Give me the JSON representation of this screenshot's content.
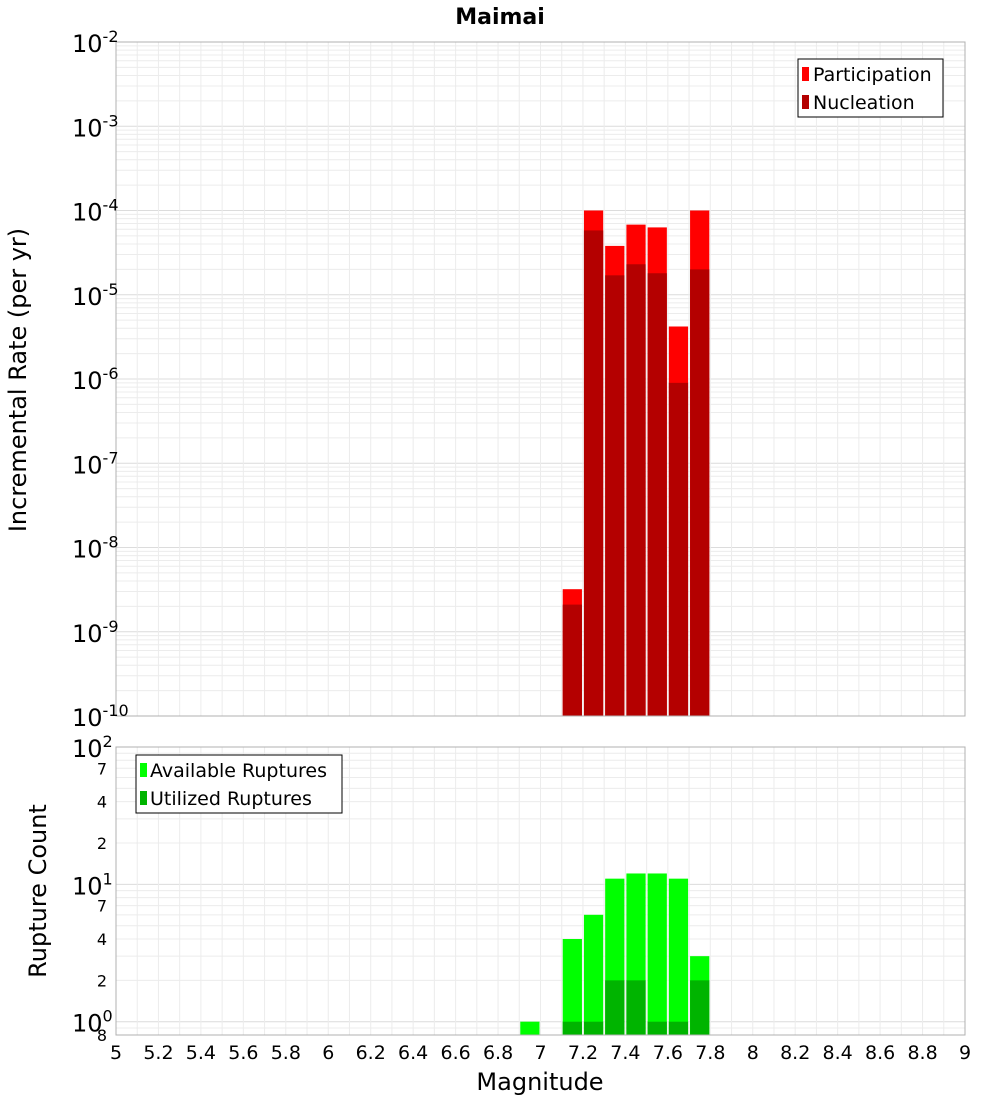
{
  "chart_data": [
    {
      "type": "bar",
      "title": "Maimai",
      "ylabel": "Incremental Rate (per yr)",
      "xlabel": "",
      "x_range": [
        5,
        9
      ],
      "y_scale": "log",
      "ylim": [
        1e-10,
        0.01
      ],
      "y_ticks": [
        {
          "mantissa": "10",
          "exponent": "-10"
        },
        {
          "mantissa": "10",
          "exponent": "-9"
        },
        {
          "mantissa": "10",
          "exponent": "-8"
        },
        {
          "mantissa": "10",
          "exponent": "-7"
        },
        {
          "mantissa": "10",
          "exponent": "-6"
        },
        {
          "mantissa": "10",
          "exponent": "-5"
        },
        {
          "mantissa": "10",
          "exponent": "-4"
        },
        {
          "mantissa": "10",
          "exponent": "-3"
        },
        {
          "mantissa": "10",
          "exponent": "-2"
        }
      ],
      "grid": true,
      "legend_position": "top-right",
      "x": [
        7.15,
        7.25,
        7.35,
        7.45,
        7.55,
        7.65,
        7.75
      ],
      "series": [
        {
          "name": "Participation",
          "color": "#ff0000",
          "values": [
            3.2e-09,
            0.0001,
            3.8e-05,
            6.8e-05,
            6.3e-05,
            4.2e-06,
            0.0001
          ]
        },
        {
          "name": "Nucleation",
          "color": "#b40000",
          "values": [
            2.1e-09,
            5.8e-05,
            1.7e-05,
            2.3e-05,
            1.8e-05,
            9e-07,
            2e-05
          ]
        }
      ]
    },
    {
      "type": "bar",
      "title": "",
      "ylabel": "Rupture Count",
      "xlabel": "Magnitude",
      "x_range": [
        5,
        9
      ],
      "x_ticks": [
        "5",
        "5.2",
        "5.4",
        "5.6",
        "5.8",
        "6",
        "6.2",
        "6.4",
        "6.6",
        "6.8",
        "7",
        "7.2",
        "7.4",
        "7.6",
        "7.8",
        "8",
        "8.2",
        "8.4",
        "8.6",
        "8.8",
        "9"
      ],
      "y_scale": "log",
      "ylim": [
        0.8,
        100
      ],
      "y_major_ticks": [
        {
          "value": 1,
          "mantissa": "10",
          "exponent": "0"
        },
        {
          "value": 10,
          "mantissa": "10",
          "exponent": "1"
        },
        {
          "value": 100,
          "mantissa": "10",
          "exponent": "2"
        }
      ],
      "y_minor_ticks": [
        {
          "value": 0.8,
          "label": "8"
        },
        {
          "value": 2,
          "label": "2"
        },
        {
          "value": 4,
          "label": "4"
        },
        {
          "value": 7,
          "label": "7"
        },
        {
          "value": 20,
          "label": "2"
        },
        {
          "value": 40,
          "label": "4"
        },
        {
          "value": 70,
          "label": "7"
        }
      ],
      "grid": true,
      "legend_position": "top-left",
      "x": [
        6.95,
        7.15,
        7.25,
        7.35,
        7.45,
        7.55,
        7.65,
        7.75
      ],
      "series": [
        {
          "name": "Available Ruptures",
          "color": "#00ff00",
          "values": [
            1,
            4,
            6,
            11,
            12,
            12,
            11,
            3
          ]
        },
        {
          "name": "Utilized Ruptures",
          "color": "#00b400",
          "values": [
            0,
            1,
            1,
            2,
            2,
            1,
            1,
            2
          ]
        }
      ]
    }
  ]
}
